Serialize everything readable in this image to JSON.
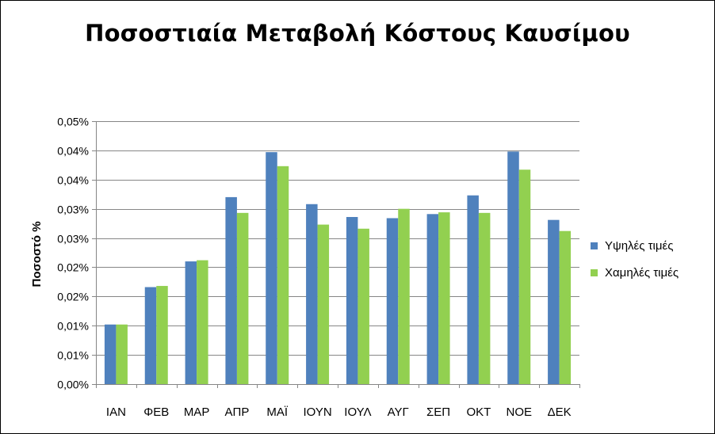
{
  "chart_data": {
    "type": "bar",
    "title": "Ποσοστιαία Μεταβολή Κόστους Καυσίμου",
    "xlabel": "",
    "ylabel": "Ποσοστό %",
    "categories": [
      "ΙΑΝ",
      "ΦΕΒ",
      "ΜΑΡ",
      "ΑΠΡ",
      "ΜΑΪ",
      "ΙΟΥΝ",
      "ΙΟΥΛ",
      "ΑΥΓ",
      "ΣΕΠ",
      "ΟΚΤ",
      "ΝΟΕ",
      "ΔΕΚ"
    ],
    "series": [
      {
        "name": "Υψηλές τιμές",
        "color": "#4f81bd",
        "values": [
          0.0102,
          0.0166,
          0.021,
          0.032,
          0.0397,
          0.0308,
          0.0286,
          0.0284,
          0.0291,
          0.0323,
          0.0398,
          0.0281
        ]
      },
      {
        "name": "Χαμηλές τιμές",
        "color": "#92d050",
        "values": [
          0.0102,
          0.0168,
          0.0212,
          0.0293,
          0.0373,
          0.0273,
          0.0266,
          0.03,
          0.0294,
          0.0293,
          0.0367,
          0.0262
        ]
      }
    ],
    "ylim": [
      0,
      0.045
    ],
    "ytick_values": [
      0,
      0.005,
      0.01,
      0.015,
      0.02,
      0.025,
      0.03,
      0.035,
      0.04,
      0.045
    ],
    "ytick_labels": [
      "0,00%",
      "0,01%",
      "0,01%",
      "0,02%",
      "0,02%",
      "0,03%",
      "0,03%",
      "0,04%",
      "0,04%",
      "0,05%"
    ],
    "grid": true,
    "legend_position": "right",
    "gridline_color": "#868686"
  }
}
